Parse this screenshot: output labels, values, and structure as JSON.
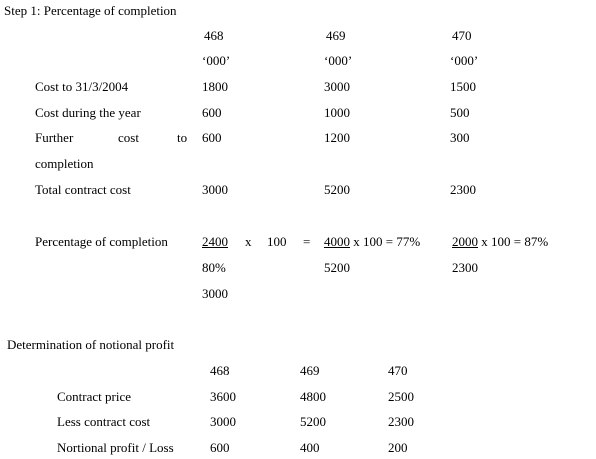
{
  "step1": {
    "heading": "Step 1: Percentage of completion",
    "col_headers": [
      "468",
      "469",
      "470"
    ],
    "units": [
      "‘000’",
      "‘000’",
      "‘000’"
    ],
    "rows": [
      {
        "label": "Cost to 31/3/2004",
        "values": [
          "1800",
          "3000",
          "1500"
        ]
      },
      {
        "label": "Cost during the year",
        "values": [
          "600",
          "1000",
          "500"
        ]
      },
      {
        "label_parts": [
          "Further",
          "cost",
          "to"
        ],
        "label_cont": "completion",
        "values": [
          "600",
          "1200",
          "300"
        ]
      },
      {
        "label": "Total contract cost",
        "values": [
          "3000",
          "5200",
          "2300"
        ]
      }
    ],
    "percentage": {
      "label": "Percentage of completion",
      "c1": {
        "num": "2400",
        "x": "x",
        "hundred": "100",
        "eq": "=",
        "result": "80%",
        "den": "3000"
      },
      "c2": {
        "num": "4000",
        "rest": "x 100 = 77%",
        "den": "5200"
      },
      "c3": {
        "num": "2000",
        "rest": "x 100 = 87%",
        "den": "2300"
      }
    }
  },
  "notional": {
    "heading": "Determination of notional profit",
    "col_headers": [
      "468",
      "469",
      "470"
    ],
    "rows": [
      {
        "label": "Contract price",
        "values": [
          "3600",
          "4800",
          "2500"
        ]
      },
      {
        "label": "Less contract cost",
        "values": [
          "3000",
          "5200",
          "2300"
        ]
      },
      {
        "label": "Nortional profit / Loss",
        "values": [
          "600",
          "400",
          "200"
        ]
      }
    ]
  }
}
